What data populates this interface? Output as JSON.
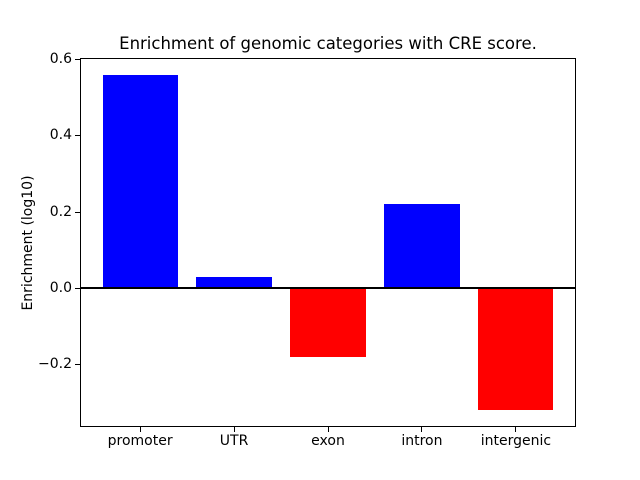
{
  "chart_data": {
    "type": "bar",
    "title": "Enrichment of genomic categories with CRE score.",
    "xlabel": "",
    "ylabel": "Enrichment (log10)",
    "categories": [
      "promoter",
      "UTR",
      "exon",
      "intron",
      "intergenic"
    ],
    "values": [
      0.56,
      0.03,
      -0.18,
      0.22,
      -0.32
    ],
    "bar_colors": [
      "#0000ff",
      "#0000ff",
      "#ff0000",
      "#0000ff",
      "#ff0000"
    ],
    "positive_color": "#0000ff",
    "negative_color": "#ff0000",
    "bar_width_units": 0.8,
    "xlim": [
      -0.64,
      4.64
    ],
    "ylim": [
      -0.364,
      0.604
    ],
    "yticks": [
      0.6,
      0.4,
      0.2,
      0.0,
      -0.2
    ],
    "ytick_labels": [
      "0.6",
      "0.4",
      "0.2",
      "0.0",
      "−0.2"
    ],
    "zero_line": true,
    "grid": false,
    "legend": "none",
    "colors": {
      "axis": "#000000",
      "text": "#000000",
      "background": "#ffffff"
    }
  }
}
